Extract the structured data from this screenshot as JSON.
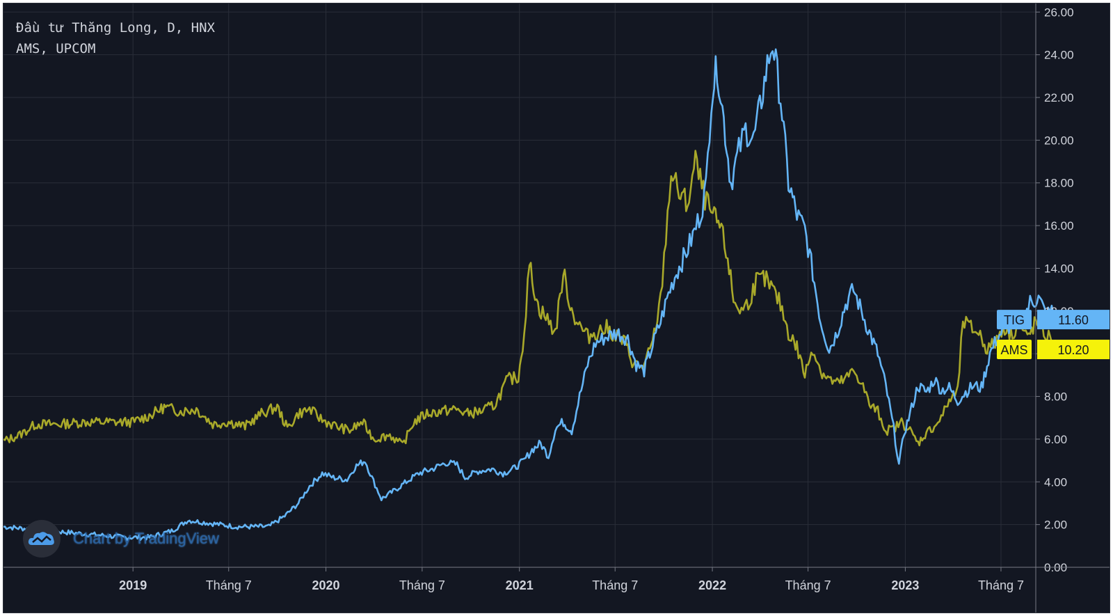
{
  "legend": {
    "line1": "Đầu tư Thăng Long, D, HNX",
    "line2": "AMS, UPCOM"
  },
  "watermark": {
    "text": "Chart by TradingView",
    "icon": "tradingview-cloud-icon"
  },
  "colors": {
    "background": "#131722",
    "grid": "#2a2e39",
    "axis_text": "#d1d4dc",
    "tig": "#4c9be8",
    "tig_line": "#64b5f6",
    "ams": "#a9a92a",
    "ams_badge": "#f5f20a"
  },
  "chart_data": {
    "type": "line",
    "title": "",
    "xlabel": "",
    "ylabel": "",
    "y_axis_side": "right",
    "ylim": [
      0,
      26
    ],
    "yticks": [
      "0.00",
      "2.00",
      "4.00",
      "6.00",
      "8.00",
      "10.00",
      "12.00",
      "14.00",
      "16.00",
      "18.00",
      "20.00",
      "22.00",
      "24.00",
      "26.00"
    ],
    "x_start": "2018-05-01",
    "x_end": "2023-12-31",
    "xticks": [
      {
        "label": "2019",
        "date": "2019-01-01",
        "bold": true
      },
      {
        "label": "Tháng 7",
        "date": "2019-07-01",
        "bold": false
      },
      {
        "label": "2020",
        "date": "2020-01-01",
        "bold": true
      },
      {
        "label": "Tháng 7",
        "date": "2020-07-01",
        "bold": false
      },
      {
        "label": "2021",
        "date": "2021-01-01",
        "bold": true
      },
      {
        "label": "Tháng 7",
        "date": "2021-07-01",
        "bold": false
      },
      {
        "label": "2022",
        "date": "2022-01-01",
        "bold": true
      },
      {
        "label": "Tháng 7",
        "date": "2022-07-01",
        "bold": false
      },
      {
        "label": "2023",
        "date": "2023-01-01",
        "bold": true
      },
      {
        "label": "Tháng 7",
        "date": "2023-07-01",
        "bold": false
      }
    ],
    "grid": true,
    "series": [
      {
        "name": "TIG",
        "last_value": "11.60",
        "points": [
          [
            "2018-05-01",
            1.9
          ],
          [
            "2018-06-15",
            1.8
          ],
          [
            "2018-08-01",
            1.7
          ],
          [
            "2018-09-15",
            1.6
          ],
          [
            "2018-11-01",
            1.5
          ],
          [
            "2018-12-15",
            1.4
          ],
          [
            "2019-02-01",
            1.4
          ],
          [
            "2019-03-15",
            1.7
          ],
          [
            "2019-04-15",
            2.2
          ],
          [
            "2019-05-15",
            2.1
          ],
          [
            "2019-06-15",
            2.0
          ],
          [
            "2019-07-15",
            1.9
          ],
          [
            "2019-08-15",
            1.9
          ],
          [
            "2019-09-15",
            1.9
          ],
          [
            "2019-10-15",
            2.4
          ],
          [
            "2019-11-10",
            3.0
          ],
          [
            "2019-12-01",
            3.8
          ],
          [
            "2019-12-25",
            4.4
          ],
          [
            "2020-01-15",
            4.2
          ],
          [
            "2020-02-10",
            4.1
          ],
          [
            "2020-02-25",
            4.7
          ],
          [
            "2020-03-15",
            5.0
          ],
          [
            "2020-03-28",
            4.2
          ],
          [
            "2020-04-15",
            3.2
          ],
          [
            "2020-05-10",
            3.6
          ],
          [
            "2020-06-01",
            4.0
          ],
          [
            "2020-06-25",
            4.4
          ],
          [
            "2020-07-20",
            4.6
          ],
          [
            "2020-08-15",
            4.9
          ],
          [
            "2020-09-05",
            4.8
          ],
          [
            "2020-09-20",
            4.2
          ],
          [
            "2020-10-15",
            4.5
          ],
          [
            "2020-11-10",
            4.6
          ],
          [
            "2020-12-01",
            4.4
          ],
          [
            "2020-12-20",
            4.6
          ],
          [
            "2021-01-10",
            5.0
          ],
          [
            "2021-01-25",
            5.5
          ],
          [
            "2021-02-10",
            5.8
          ],
          [
            "2021-02-25",
            5.2
          ],
          [
            "2021-03-10",
            6.5
          ],
          [
            "2021-03-25",
            6.8
          ],
          [
            "2021-04-10",
            6.4
          ],
          [
            "2021-04-25",
            8.0
          ],
          [
            "2021-05-10",
            9.5
          ],
          [
            "2021-05-25",
            10.5
          ],
          [
            "2021-06-15",
            10.8
          ],
          [
            "2021-07-05",
            11.0
          ],
          [
            "2021-07-25",
            10.7
          ],
          [
            "2021-08-10",
            9.5
          ],
          [
            "2021-08-25",
            9.2
          ],
          [
            "2021-09-10",
            10.4
          ],
          [
            "2021-09-25",
            11.5
          ],
          [
            "2021-10-10",
            12.8
          ],
          [
            "2021-10-25",
            13.8
          ],
          [
            "2021-11-10",
            14.6
          ],
          [
            "2021-11-25",
            15.5
          ],
          [
            "2021-12-10",
            16.6
          ],
          [
            "2021-12-20",
            17.8
          ],
          [
            "2021-12-30",
            22.0
          ],
          [
            "2022-01-10",
            23.5
          ],
          [
            "2022-01-20",
            21.5
          ],
          [
            "2022-02-05",
            18.0
          ],
          [
            "2022-02-20",
            19.5
          ],
          [
            "2022-03-05",
            20.5
          ],
          [
            "2022-03-20",
            20.0
          ],
          [
            "2022-04-01",
            21.5
          ],
          [
            "2022-04-15",
            23.5
          ],
          [
            "2022-04-25",
            24.6
          ],
          [
            "2022-05-10",
            22.0
          ],
          [
            "2022-05-25",
            18.0
          ],
          [
            "2022-06-10",
            16.5
          ],
          [
            "2022-06-25",
            15.8
          ],
          [
            "2022-07-10",
            13.8
          ],
          [
            "2022-07-25",
            11.5
          ],
          [
            "2022-08-10",
            10.2
          ],
          [
            "2022-08-25",
            11.0
          ],
          [
            "2022-09-10",
            12.3
          ],
          [
            "2022-09-25",
            13.0
          ],
          [
            "2022-10-10",
            12.0
          ],
          [
            "2022-10-25",
            11.0
          ],
          [
            "2022-11-10",
            10.0
          ],
          [
            "2022-11-25",
            8.5
          ],
          [
            "2022-12-10",
            6.5
          ],
          [
            "2022-12-20",
            4.8
          ],
          [
            "2022-12-30",
            6.3
          ],
          [
            "2023-01-10",
            7.2
          ],
          [
            "2023-01-25",
            8.5
          ],
          [
            "2023-02-10",
            8.2
          ],
          [
            "2023-02-25",
            8.8
          ],
          [
            "2023-03-10",
            8.3
          ],
          [
            "2023-03-25",
            8.4
          ],
          [
            "2023-04-10",
            7.8
          ],
          [
            "2023-04-25",
            8.2
          ],
          [
            "2023-05-10",
            8.5
          ],
          [
            "2023-05-25",
            8.4
          ],
          [
            "2023-06-10",
            10.0
          ],
          [
            "2023-06-25",
            10.8
          ],
          [
            "2023-07-10",
            11.2
          ],
          [
            "2023-07-25",
            11.4
          ],
          [
            "2023-08-10",
            11.5
          ],
          [
            "2023-08-25",
            12.4
          ],
          [
            "2023-09-10",
            12.6
          ],
          [
            "2023-09-25",
            11.8
          ],
          [
            "2023-10-05",
            12.0
          ],
          [
            "2023-10-15",
            11.6
          ]
        ]
      },
      {
        "name": "AMS",
        "last_value": "10.20",
        "points": [
          [
            "2018-05-01",
            5.9
          ],
          [
            "2018-06-01",
            6.2
          ],
          [
            "2018-07-01",
            6.7
          ],
          [
            "2018-08-15",
            6.7
          ],
          [
            "2018-10-01",
            6.8
          ],
          [
            "2018-11-15",
            6.8
          ],
          [
            "2019-01-01",
            6.8
          ],
          [
            "2019-02-01",
            7.1
          ],
          [
            "2019-03-01",
            7.5
          ],
          [
            "2019-04-01",
            7.3
          ],
          [
            "2019-05-01",
            7.4
          ],
          [
            "2019-06-01",
            6.7
          ],
          [
            "2019-07-01",
            6.8
          ],
          [
            "2019-08-01",
            6.6
          ],
          [
            "2019-09-01",
            7.2
          ],
          [
            "2019-10-01",
            7.5
          ],
          [
            "2019-10-20",
            6.5
          ],
          [
            "2019-11-10",
            7.2
          ],
          [
            "2019-12-01",
            7.4
          ],
          [
            "2019-12-25",
            6.9
          ],
          [
            "2020-01-20",
            6.6
          ],
          [
            "2020-02-15",
            6.4
          ],
          [
            "2020-03-10",
            6.8
          ],
          [
            "2020-04-01",
            6.0
          ],
          [
            "2020-05-01",
            6.2
          ],
          [
            "2020-05-25",
            5.7
          ],
          [
            "2020-06-15",
            6.8
          ],
          [
            "2020-07-10",
            7.2
          ],
          [
            "2020-08-05",
            7.3
          ],
          [
            "2020-09-01",
            7.4
          ],
          [
            "2020-09-25",
            7.2
          ],
          [
            "2020-10-20",
            7.3
          ],
          [
            "2020-11-15",
            7.6
          ],
          [
            "2020-12-10",
            8.8
          ],
          [
            "2020-12-30",
            8.9
          ],
          [
            "2021-01-10",
            11.0
          ],
          [
            "2021-01-20",
            14.2
          ],
          [
            "2021-02-05",
            12.2
          ],
          [
            "2021-02-20",
            11.7
          ],
          [
            "2021-03-10",
            11.0
          ],
          [
            "2021-03-25",
            13.8
          ],
          [
            "2021-04-10",
            12.0
          ],
          [
            "2021-04-25",
            11.3
          ],
          [
            "2021-05-10",
            10.8
          ],
          [
            "2021-05-25",
            11.0
          ],
          [
            "2021-06-15",
            11.2
          ],
          [
            "2021-07-05",
            10.8
          ],
          [
            "2021-07-20",
            10.5
          ],
          [
            "2021-08-05",
            9.5
          ],
          [
            "2021-08-25",
            9.4
          ],
          [
            "2021-09-10",
            10.5
          ],
          [
            "2021-09-25",
            12.5
          ],
          [
            "2021-10-05",
            15.5
          ],
          [
            "2021-10-15",
            18.5
          ],
          [
            "2021-10-30",
            17.5
          ],
          [
            "2021-11-15",
            17.0
          ],
          [
            "2021-11-30",
            19.0
          ],
          [
            "2021-12-15",
            17.5
          ],
          [
            "2021-12-30",
            16.5
          ],
          [
            "2022-01-15",
            16.0
          ],
          [
            "2022-01-30",
            14.5
          ],
          [
            "2022-02-10",
            12.5
          ],
          [
            "2022-02-25",
            12.0
          ],
          [
            "2022-03-10",
            12.4
          ],
          [
            "2022-03-25",
            13.4
          ],
          [
            "2022-04-10",
            13.5
          ],
          [
            "2022-04-25",
            13.0
          ],
          [
            "2022-05-10",
            12.3
          ],
          [
            "2022-05-25",
            11.0
          ],
          [
            "2022-06-10",
            10.3
          ],
          [
            "2022-06-25",
            9.0
          ],
          [
            "2022-07-10",
            10.3
          ],
          [
            "2022-07-25",
            9.2
          ],
          [
            "2022-08-10",
            8.8
          ],
          [
            "2022-08-25",
            8.6
          ],
          [
            "2022-09-10",
            8.8
          ],
          [
            "2022-09-25",
            9.2
          ],
          [
            "2022-10-10",
            8.7
          ],
          [
            "2022-10-25",
            7.6
          ],
          [
            "2022-11-10",
            7.3
          ],
          [
            "2022-11-25",
            6.4
          ],
          [
            "2022-12-10",
            6.5
          ],
          [
            "2022-12-25",
            6.8
          ],
          [
            "2023-01-10",
            6.4
          ],
          [
            "2023-01-25",
            5.8
          ],
          [
            "2023-02-10",
            6.3
          ],
          [
            "2023-02-25",
            6.6
          ],
          [
            "2023-03-10",
            7.0
          ],
          [
            "2023-03-25",
            7.8
          ],
          [
            "2023-04-10",
            8.2
          ],
          [
            "2023-04-20",
            11.5
          ],
          [
            "2023-05-05",
            11.2
          ],
          [
            "2023-05-20",
            11.0
          ],
          [
            "2023-06-05",
            10.2
          ],
          [
            "2023-06-20",
            10.5
          ],
          [
            "2023-07-05",
            11.3
          ],
          [
            "2023-07-20",
            10.9
          ],
          [
            "2023-08-05",
            11.4
          ],
          [
            "2023-08-20",
            10.7
          ],
          [
            "2023-09-05",
            11.5
          ],
          [
            "2023-09-20",
            11.0
          ],
          [
            "2023-10-05",
            10.6
          ],
          [
            "2023-10-15",
            10.2
          ]
        ]
      }
    ]
  }
}
